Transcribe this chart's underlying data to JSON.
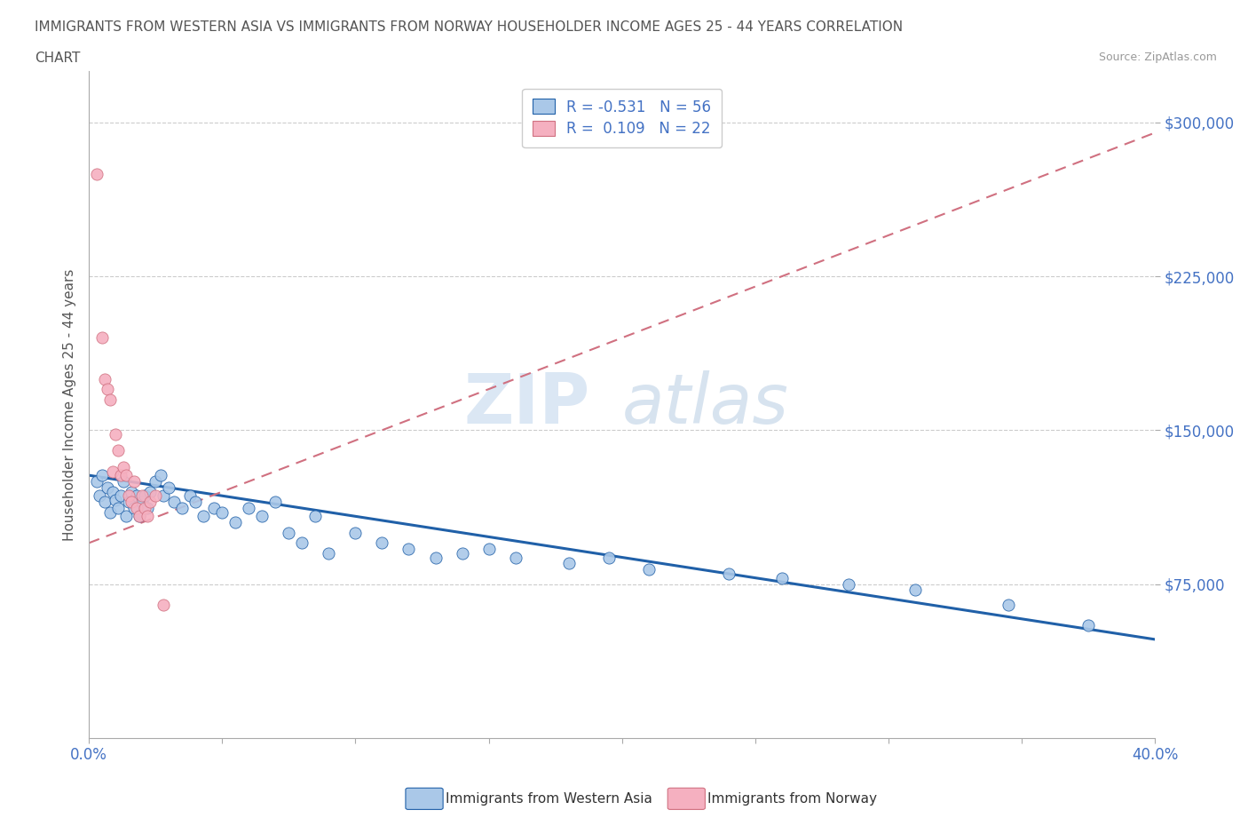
{
  "title_line1": "IMMIGRANTS FROM WESTERN ASIA VS IMMIGRANTS FROM NORWAY HOUSEHOLDER INCOME AGES 25 - 44 YEARS CORRELATION",
  "title_line2": "CHART",
  "source_text": "Source: ZipAtlas.com",
  "ylabel": "Householder Income Ages 25 - 44 years",
  "xlim": [
    0.0,
    0.4
  ],
  "ylim": [
    0,
    325000
  ],
  "yticks": [
    75000,
    150000,
    225000,
    300000
  ],
  "ytick_labels": [
    "$75,000",
    "$150,000",
    "$225,000",
    "$300,000"
  ],
  "xticks": [
    0.0,
    0.05,
    0.1,
    0.15,
    0.2,
    0.25,
    0.3,
    0.35,
    0.4
  ],
  "xtick_labels": [
    "0.0%",
    "",
    "",
    "",
    "",
    "",
    "",
    "",
    "40.0%"
  ],
  "legend_r1": "R = -0.531   N = 56",
  "legend_r2": "R =  0.109   N = 22",
  "watermark_zip": "ZIP",
  "watermark_atlas": "atlas",
  "color_western_asia": "#aac8e8",
  "color_norway": "#f5b0c0",
  "line_color_western_asia": "#2060a8",
  "line_color_norway": "#d07080",
  "background_color": "#ffffff",
  "western_asia_x": [
    0.003,
    0.004,
    0.005,
    0.006,
    0.007,
    0.008,
    0.009,
    0.01,
    0.011,
    0.012,
    0.013,
    0.014,
    0.015,
    0.016,
    0.017,
    0.018,
    0.019,
    0.02,
    0.021,
    0.022,
    0.023,
    0.025,
    0.027,
    0.028,
    0.03,
    0.032,
    0.035,
    0.038,
    0.04,
    0.043,
    0.047,
    0.05,
    0.055,
    0.06,
    0.065,
    0.07,
    0.075,
    0.08,
    0.085,
    0.09,
    0.1,
    0.11,
    0.12,
    0.13,
    0.14,
    0.15,
    0.16,
    0.18,
    0.195,
    0.21,
    0.24,
    0.26,
    0.285,
    0.31,
    0.345,
    0.375
  ],
  "western_asia_y": [
    125000,
    118000,
    128000,
    115000,
    122000,
    110000,
    120000,
    116000,
    112000,
    118000,
    125000,
    108000,
    115000,
    120000,
    112000,
    118000,
    108000,
    115000,
    118000,
    112000,
    120000,
    125000,
    128000,
    118000,
    122000,
    115000,
    112000,
    118000,
    115000,
    108000,
    112000,
    110000,
    105000,
    112000,
    108000,
    115000,
    100000,
    95000,
    108000,
    90000,
    100000,
    95000,
    92000,
    88000,
    90000,
    92000,
    88000,
    85000,
    88000,
    82000,
    80000,
    78000,
    75000,
    72000,
    65000,
    55000
  ],
  "norway_x": [
    0.003,
    0.005,
    0.006,
    0.007,
    0.008,
    0.009,
    0.01,
    0.011,
    0.012,
    0.013,
    0.014,
    0.015,
    0.016,
    0.017,
    0.018,
    0.019,
    0.02,
    0.021,
    0.022,
    0.023,
    0.025,
    0.028
  ],
  "norway_y": [
    275000,
    195000,
    175000,
    170000,
    165000,
    130000,
    148000,
    140000,
    128000,
    132000,
    128000,
    118000,
    115000,
    125000,
    112000,
    108000,
    118000,
    112000,
    108000,
    115000,
    118000,
    65000
  ],
  "norway_line_x0": 0.0,
  "norway_line_y0": 95000,
  "norway_line_x1": 0.4,
  "norway_line_y1": 295000,
  "wa_line_x0": 0.0,
  "wa_line_y0": 128000,
  "wa_line_x1": 0.4,
  "wa_line_y1": 48000
}
